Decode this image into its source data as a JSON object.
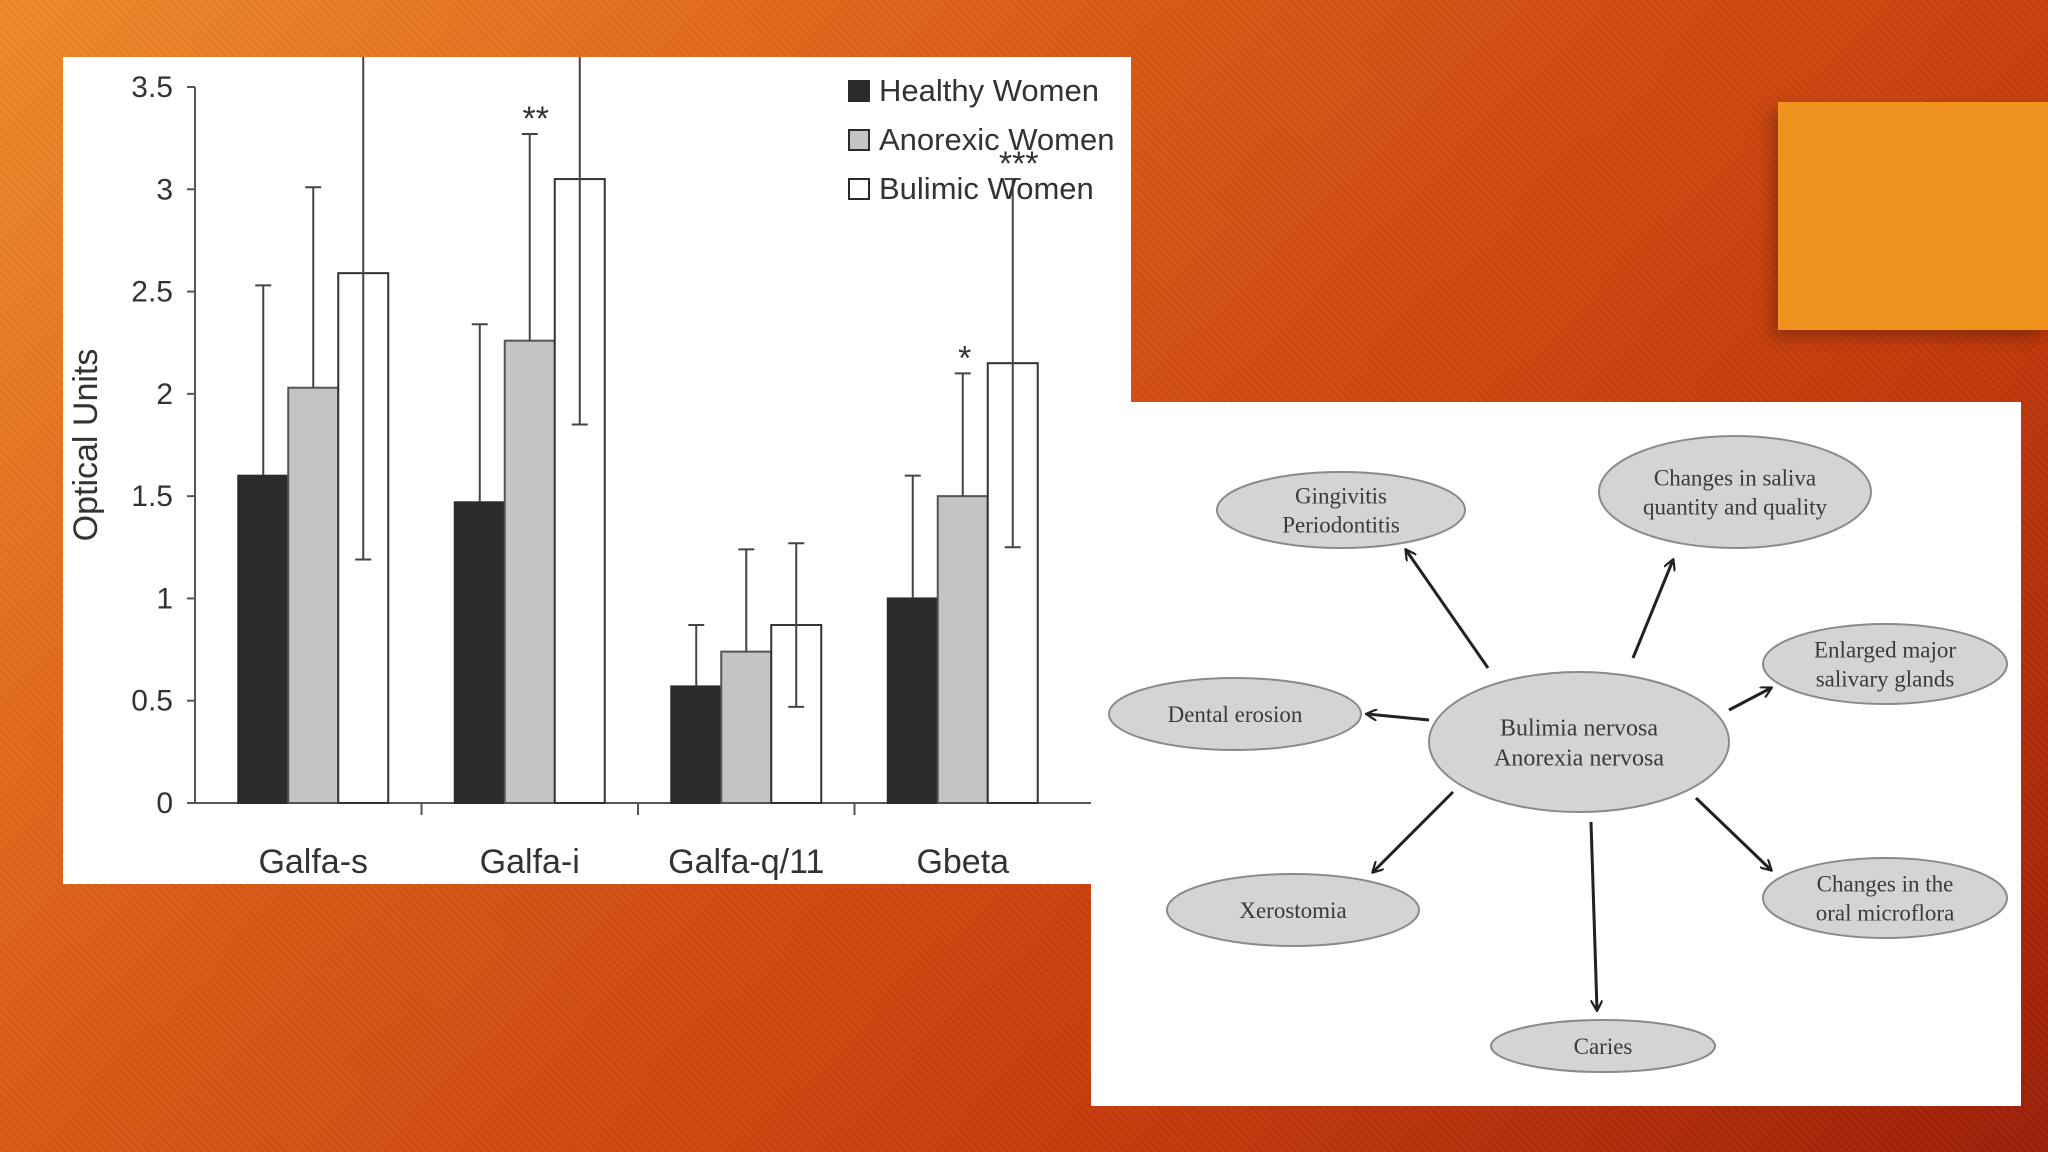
{
  "chart_data": {
    "type": "bar",
    "categories": [
      "Galfa-s",
      "Galfa-i",
      "Galfa-q/11",
      "Gbeta"
    ],
    "ylabel": "Optical Units",
    "ylim": [
      0,
      3.5
    ],
    "yticks": [
      "0",
      "0.5",
      "1",
      "1.5",
      "2",
      "2.5",
      "3",
      "3.5"
    ],
    "legend_position": "top-right",
    "series": [
      {
        "name": "Healthy Women",
        "color": "#2b2b2b",
        "values": [
          1.6,
          1.47,
          0.57,
          1.0
        ],
        "errors": [
          0.93,
          0.87,
          0.3,
          0.6
        ]
      },
      {
        "name": "Anorexic Women",
        "color": "#c4c4c4",
        "values": [
          2.03,
          2.26,
          0.74,
          1.5
        ],
        "errors": [
          0.98,
          1.01,
          0.5,
          0.6
        ]
      },
      {
        "name": "Bulimic Women",
        "color": "#ffffff",
        "values": [
          2.59,
          3.05,
          0.87,
          2.15
        ],
        "errors": [
          1.4,
          1.2,
          0.4,
          0.9
        ]
      }
    ],
    "annotations": [
      {
        "category": "Galfa-s",
        "series": "Bulimic Women",
        "text": "*"
      },
      {
        "category": "Galfa-i",
        "series": "Anorexic Women",
        "text": "**"
      },
      {
        "category": "Galfa-i",
        "series": "Bulimic Women",
        "text": "***"
      },
      {
        "category": "Gbeta",
        "series": "Anorexic Women",
        "text": "*"
      },
      {
        "category": "Gbeta",
        "series": "Bulimic Women",
        "text": "***"
      }
    ]
  },
  "diagram": {
    "center": {
      "lines": [
        "Bulimia nervosa",
        "Anorexia nervosa"
      ]
    },
    "nodes": [
      {
        "id": "gingivitis",
        "lines": [
          "Gingivitis",
          "Periodontitis"
        ]
      },
      {
        "id": "saliva",
        "lines": [
          "Changes in saliva",
          "quantity and quality"
        ]
      },
      {
        "id": "glands",
        "lines": [
          "Enlarged major",
          "salivary glands"
        ]
      },
      {
        "id": "erosion",
        "lines": [
          "Dental erosion"
        ]
      },
      {
        "id": "microflora",
        "lines": [
          "Changes in the",
          "oral microflora"
        ]
      },
      {
        "id": "xerostomia",
        "lines": [
          "Xerostomia"
        ]
      },
      {
        "id": "caries",
        "lines": [
          "Caries"
        ]
      }
    ]
  },
  "colors": {
    "background_start": "#ef8a2b",
    "background_end": "#9d1f08",
    "accent_square": "#f0921e",
    "node_fill": "#d4d4d4",
    "node_stroke": "#8a8a8a"
  }
}
